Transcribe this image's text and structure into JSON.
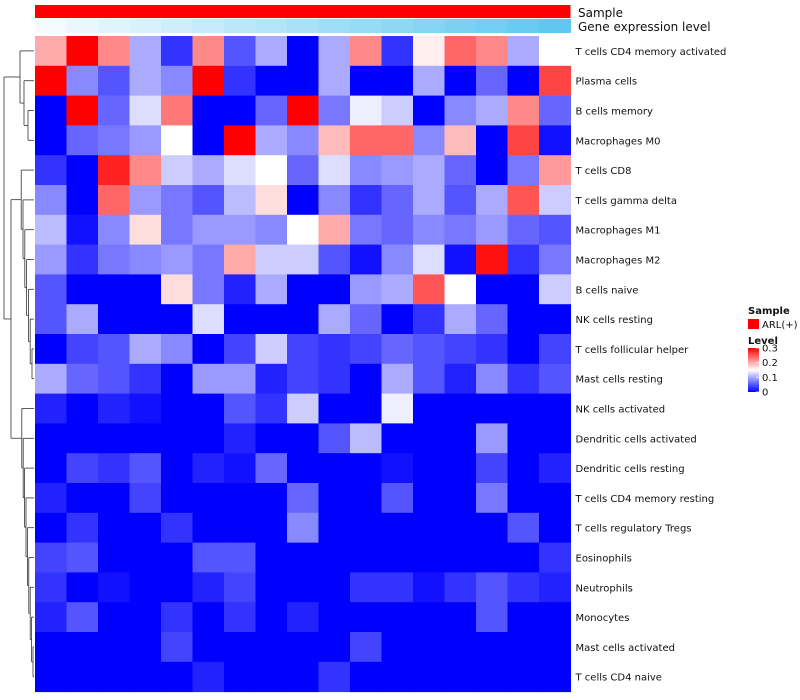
{
  "chart_data": {
    "type": "heatmap",
    "title": "",
    "annotations": [
      {
        "name": "Sample",
        "kind": "categorical",
        "color": "#ff0000"
      },
      {
        "name": "Gene expression level",
        "kind": "gradient",
        "from": "#f4fafd",
        "to": "#5fc8f0"
      }
    ],
    "rows": [
      "T cells CD4 memory activated",
      "Plasma cells",
      "B cells memory",
      "Macrophages M0",
      "T cells CD8",
      "T cells gamma delta",
      "Macrophages M1",
      "Macrophages M2",
      "B cells naive",
      "NK cells resting",
      "T cells follicular helper",
      "Mast cells resting",
      "NK cells activated",
      "Dendritic cells activated",
      "Dendritic cells resting",
      "T cells CD4 memory resting",
      "T cells regulatory  Tregs",
      "Eosinophils",
      "Neutrophils",
      "Monocytes",
      "Mast cells activated",
      "T cells CD4 naive"
    ],
    "n_columns": 17,
    "values": [
      [
        0.2,
        0.3,
        0.22,
        0.1,
        0.03,
        0.22,
        0.05,
        0.1,
        0.0,
        0.1,
        0.22,
        0.03,
        0.16,
        0.24,
        0.22,
        0.1,
        0.15
      ],
      [
        0.3,
        0.08,
        0.05,
        0.1,
        0.08,
        0.3,
        0.03,
        0.0,
        0.0,
        0.1,
        0.0,
        0.0,
        0.1,
        0.0,
        0.06,
        0.0,
        0.26
      ],
      [
        0.0,
        0.3,
        0.06,
        0.13,
        0.23,
        0.0,
        0.0,
        0.06,
        0.3,
        0.07,
        0.14,
        0.12,
        0.0,
        0.08,
        0.1,
        0.22,
        0.06
      ],
      [
        0.0,
        0.06,
        0.07,
        0.09,
        0.15,
        0.0,
        0.3,
        0.1,
        0.08,
        0.19,
        0.24,
        0.24,
        0.08,
        0.19,
        0.0,
        0.26,
        0.01
      ],
      [
        0.03,
        0.0,
        0.28,
        0.22,
        0.12,
        0.1,
        0.13,
        0.15,
        0.06,
        0.13,
        0.08,
        0.09,
        0.1,
        0.06,
        0.0,
        0.07,
        0.21
      ],
      [
        0.08,
        0.0,
        0.24,
        0.09,
        0.07,
        0.05,
        0.11,
        0.17,
        0.0,
        0.08,
        0.03,
        0.06,
        0.1,
        0.05,
        0.1,
        0.25,
        0.12
      ],
      [
        0.11,
        0.01,
        0.08,
        0.17,
        0.07,
        0.09,
        0.09,
        0.08,
        0.15,
        0.2,
        0.07,
        0.06,
        0.08,
        0.07,
        0.09,
        0.06,
        0.05
      ],
      [
        0.09,
        0.03,
        0.07,
        0.08,
        0.09,
        0.07,
        0.2,
        0.12,
        0.12,
        0.05,
        0.01,
        0.08,
        0.13,
        0.01,
        0.29,
        0.03,
        0.07
      ],
      [
        0.05,
        0.0,
        0.0,
        0.0,
        0.17,
        0.07,
        0.02,
        0.1,
        0.0,
        0.0,
        0.09,
        0.1,
        0.25,
        0.15,
        0.0,
        0.0,
        0.12
      ],
      [
        0.05,
        0.1,
        0.0,
        0.0,
        0.0,
        0.13,
        0.0,
        0.0,
        0.0,
        0.1,
        0.06,
        0.0,
        0.03,
        0.1,
        0.06,
        0.0,
        0.0
      ],
      [
        0.0,
        0.04,
        0.05,
        0.1,
        0.08,
        0.0,
        0.04,
        0.12,
        0.04,
        0.03,
        0.04,
        0.06,
        0.05,
        0.04,
        0.03,
        0.0,
        0.04
      ],
      [
        0.1,
        0.06,
        0.05,
        0.03,
        0.0,
        0.09,
        0.09,
        0.02,
        0.04,
        0.03,
        0.0,
        0.1,
        0.05,
        0.02,
        0.08,
        0.03,
        0.05
      ],
      [
        0.02,
        0.0,
        0.02,
        0.01,
        0.0,
        0.0,
        0.05,
        0.03,
        0.12,
        0.0,
        0.0,
        0.14,
        0.0,
        0.0,
        0.0,
        0.0,
        0.0
      ],
      [
        0.0,
        0.0,
        0.0,
        0.0,
        0.0,
        0.0,
        0.02,
        0.0,
        0.0,
        0.05,
        0.11,
        0.0,
        0.0,
        0.0,
        0.09,
        0.0,
        0.0
      ],
      [
        0.0,
        0.04,
        0.03,
        0.05,
        0.0,
        0.02,
        0.01,
        0.06,
        0.0,
        0.0,
        0.0,
        0.01,
        0.0,
        0.0,
        0.04,
        0.0,
        0.02
      ],
      [
        0.02,
        0.0,
        0.0,
        0.04,
        0.0,
        0.0,
        0.0,
        0.0,
        0.06,
        0.0,
        0.0,
        0.05,
        0.0,
        0.0,
        0.07,
        0.0,
        0.0
      ],
      [
        0.0,
        0.03,
        0.0,
        0.0,
        0.03,
        0.0,
        0.0,
        0.0,
        0.08,
        0.0,
        0.0,
        0.0,
        0.0,
        0.0,
        0.0,
        0.05,
        0.0
      ],
      [
        0.04,
        0.05,
        0.0,
        0.0,
        0.0,
        0.05,
        0.05,
        0.0,
        0.0,
        0.0,
        0.0,
        0.0,
        0.0,
        0.0,
        0.0,
        0.0,
        0.03
      ],
      [
        0.03,
        0.0,
        0.01,
        0.0,
        0.0,
        0.02,
        0.04,
        0.0,
        0.0,
        0.0,
        0.03,
        0.03,
        0.01,
        0.03,
        0.05,
        0.03,
        0.02
      ],
      [
        0.02,
        0.05,
        0.0,
        0.0,
        0.03,
        0.0,
        0.03,
        0.0,
        0.02,
        0.0,
        0.0,
        0.0,
        0.0,
        0.0,
        0.05,
        0.0,
        0.0
      ],
      [
        0.0,
        0.0,
        0.0,
        0.0,
        0.04,
        0.0,
        0.0,
        0.0,
        0.0,
        0.0,
        0.04,
        0.0,
        0.0,
        0.0,
        0.0,
        0.0,
        0.0
      ],
      [
        0.0,
        0.0,
        0.0,
        0.0,
        0.0,
        0.02,
        0.0,
        0.0,
        0.0,
        0.03,
        0.0,
        0.0,
        0.0,
        0.0,
        0.0,
        0.0,
        0.0
      ]
    ],
    "color_scale": {
      "low": "#0000ff",
      "mid": "#ffffff",
      "high": "#ff0000",
      "min": 0,
      "mid_value": 0.15,
      "max": 0.3
    },
    "legend": {
      "sample_title": "Sample",
      "sample_entry": "ARL(+)",
      "level_title": "Level",
      "level_ticks": [
        "0.3",
        "0.2",
        "0.1",
        "0"
      ],
      "level_tick_values": [
        0.3,
        0.2,
        0.1,
        0
      ],
      "position": "right"
    },
    "row_dendrogram": true
  }
}
